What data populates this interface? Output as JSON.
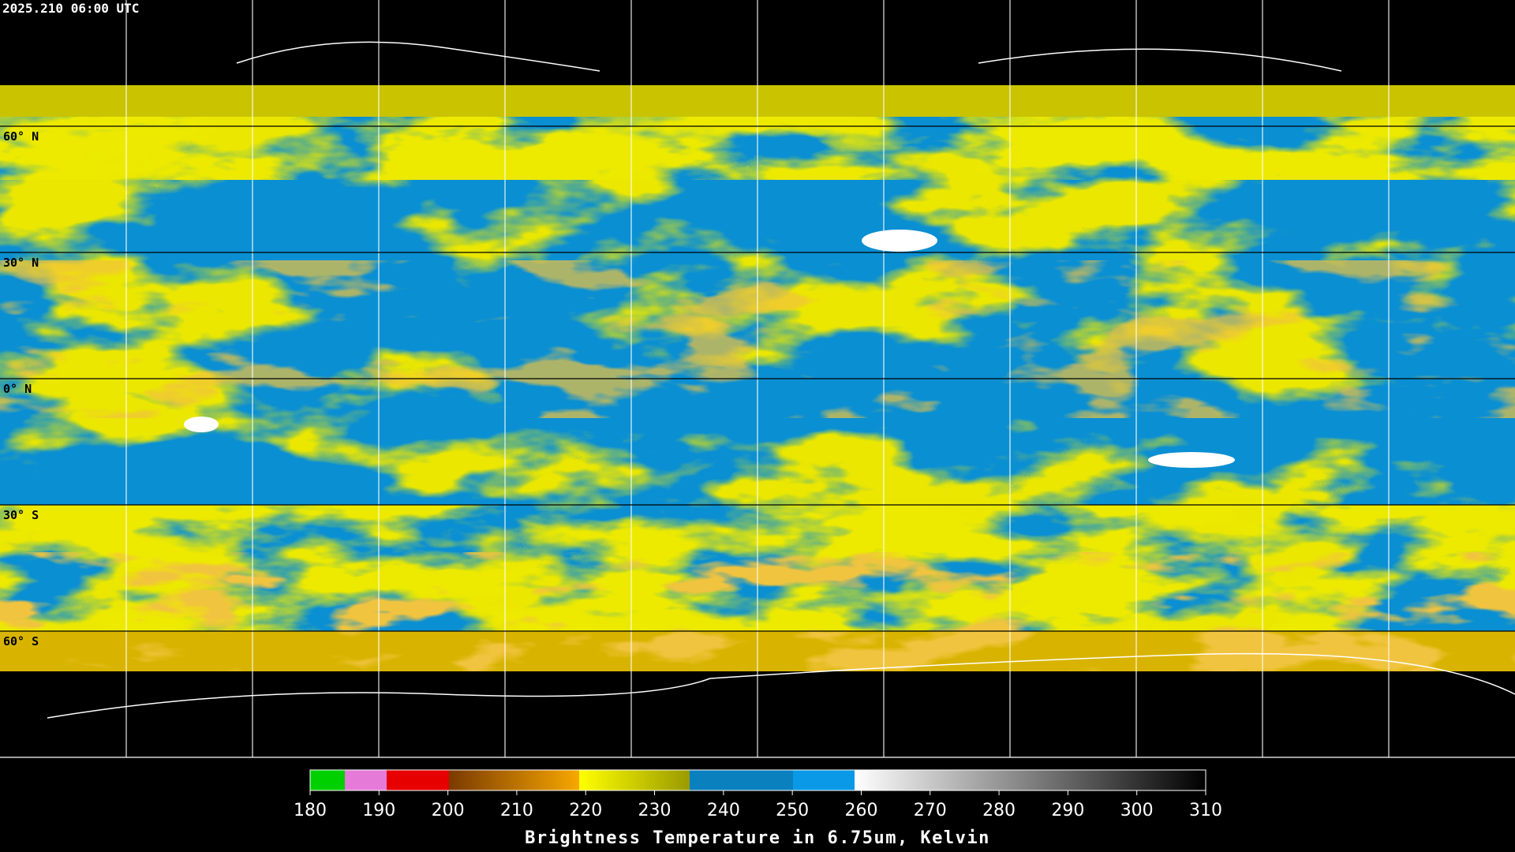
{
  "timestamp": "2025.210 06:00 UTC",
  "latitude_labels": [
    "60° N",
    "30° N",
    "0° N",
    "30° S",
    "60° S"
  ],
  "colorbar": {
    "ticks": [
      180,
      190,
      200,
      210,
      220,
      230,
      240,
      250,
      260,
      270,
      280,
      290,
      300,
      310
    ],
    "title": "Brightness Temperature in 6.75um, Kelvin"
  }
}
